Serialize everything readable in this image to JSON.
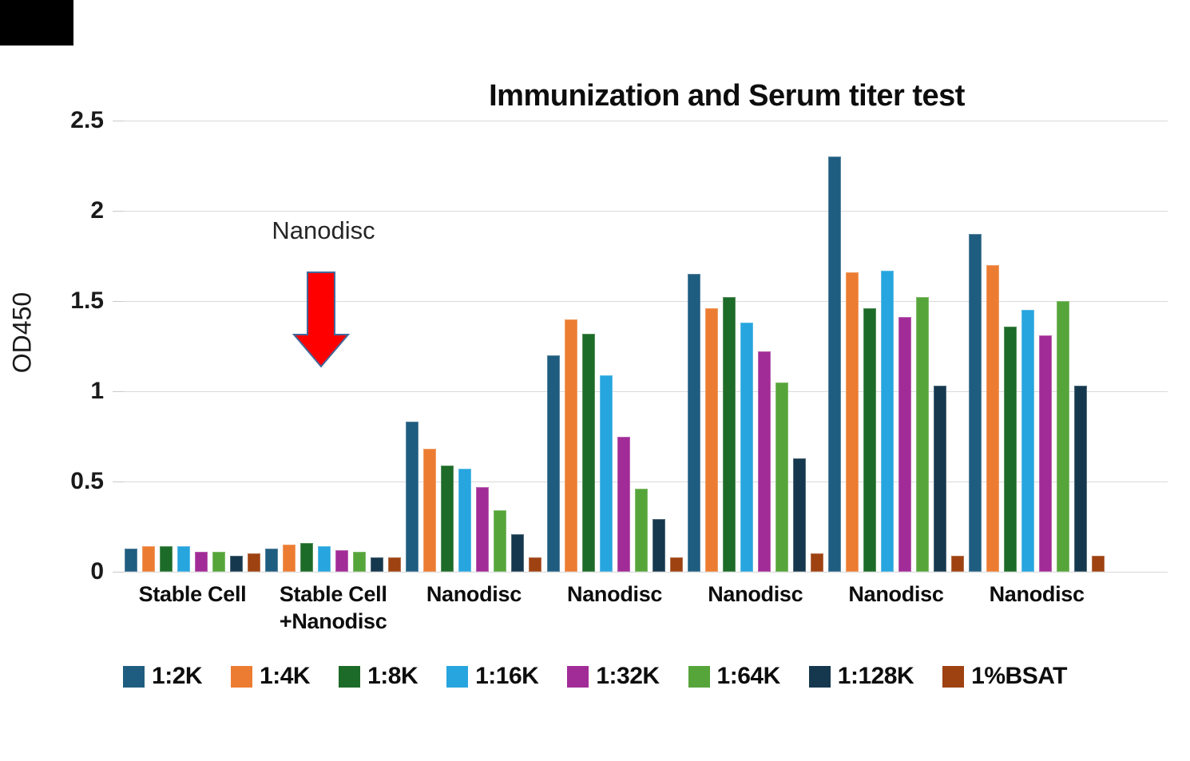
{
  "title": "Immunization and Serum titer test",
  "y_axis_title": "OD450",
  "annotation": {
    "text": "Nanodisc"
  },
  "chart_data": {
    "type": "bar",
    "title": "Immunization and Serum titer test",
    "xlabel": "",
    "ylabel": "OD450",
    "ylim": [
      0,
      2.5
    ],
    "yticks": [
      0,
      0.5,
      1,
      1.5,
      2,
      2.5
    ],
    "ytick_labels": [
      "0",
      "0.5",
      "1",
      "1.5",
      "2",
      "2.5"
    ],
    "grid": "horizontal",
    "legend_position": "bottom",
    "annotation": {
      "text": "Nanodisc",
      "target_category_index": 1,
      "arrow_color": "#fe0000",
      "arrow_border_color": "#44689b"
    },
    "categories": [
      "Stable Cell",
      "Stable Cell\n+Nanodisc",
      "Nanodisc",
      "Nanodisc",
      "Nanodisc",
      "Nanodisc",
      "Nanodisc"
    ],
    "series": [
      {
        "name": "1:2K",
        "color": "#1f5d80",
        "values": [
          0.13,
          0.13,
          0.83,
          1.2,
          1.65,
          2.3,
          1.87
        ]
      },
      {
        "name": "1:4K",
        "color": "#ec7c32",
        "values": [
          0.14,
          0.15,
          0.68,
          1.4,
          1.46,
          1.66,
          1.7
        ]
      },
      {
        "name": "1:8K",
        "color": "#1d6b28",
        "values": [
          0.14,
          0.16,
          0.59,
          1.32,
          1.52,
          1.46,
          1.36
        ]
      },
      {
        "name": "1:16K",
        "color": "#27a5de",
        "values": [
          0.14,
          0.14,
          0.57,
          1.09,
          1.38,
          1.67,
          1.45
        ]
      },
      {
        "name": "1:32K",
        "color": "#a22c97",
        "values": [
          0.11,
          0.12,
          0.47,
          0.75,
          1.22,
          1.41,
          1.31
        ]
      },
      {
        "name": "1:64K",
        "color": "#56a53a",
        "values": [
          0.11,
          0.11,
          0.34,
          0.46,
          1.05,
          1.52,
          1.5
        ]
      },
      {
        "name": "1:128K",
        "color": "#16384e",
        "values": [
          0.09,
          0.08,
          0.21,
          0.29,
          0.63,
          1.03,
          1.03
        ]
      },
      {
        "name": "1%BSAT",
        "color": "#9e4212",
        "values": [
          0.1,
          0.08,
          0.08,
          0.08,
          0.1,
          0.09,
          0.09
        ]
      }
    ]
  }
}
